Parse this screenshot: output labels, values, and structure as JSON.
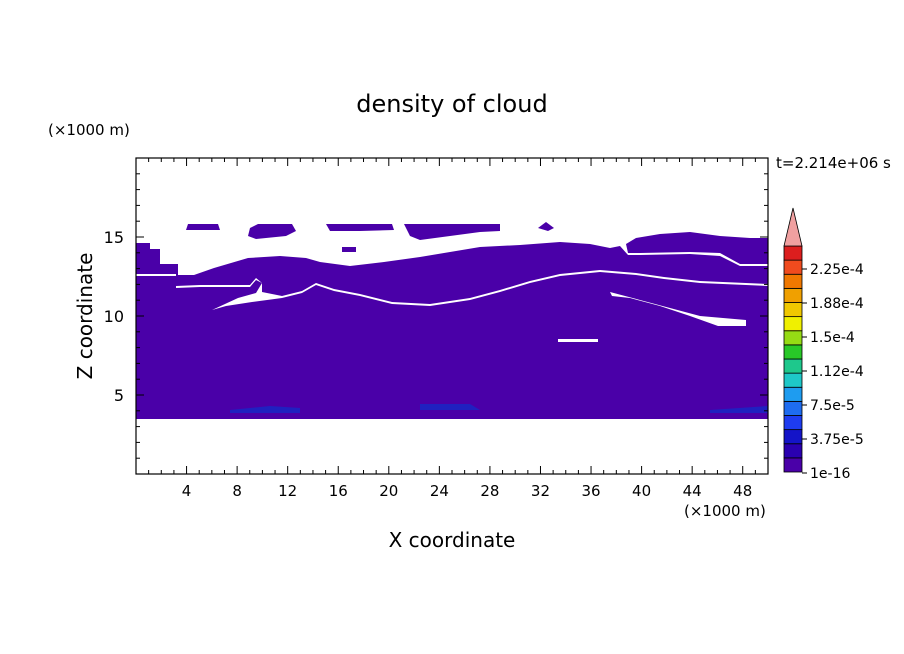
{
  "chart_data": {
    "type": "heatmap",
    "title": "density of cloud",
    "xlabel": "X coordinate",
    "ylabel": "Z coordinate",
    "x_unit": "(×1000 m)",
    "y_unit": "(×1000 m)",
    "time_label": "t=2.214e+06 s",
    "xlim": [
      0,
      50
    ],
    "ylim": [
      0,
      20
    ],
    "x_ticks": [
      4,
      8,
      12,
      16,
      20,
      24,
      28,
      32,
      36,
      40,
      44,
      48
    ],
    "y_ticks": [
      5,
      10,
      15
    ],
    "fill_color": "#4a00a8",
    "deep_color": "#2020c0",
    "colorbar": {
      "levels": [
        "2.25e-4",
        "1.88e-4",
        "1.5e-4",
        "1.12e-4",
        "7.5e-5",
        "3.75e-5",
        "1e-16"
      ],
      "colors": [
        "#4a00a8",
        "#2a00b0",
        "#1414c8",
        "#1e3cf0",
        "#1e6cf0",
        "#1e9cf0",
        "#1ec8c8",
        "#1ec88c",
        "#28c828",
        "#96dc14",
        "#f0f000",
        "#f0c800",
        "#f0a000",
        "#f07800",
        "#f04b1e",
        "#dc1e1e"
      ],
      "extension_color": "#f0a0a0"
    },
    "regions": [
      {
        "name": "main-cloud-body",
        "value": "1e-16",
        "z_bottom": 3.5,
        "z_top_approx": 12.5,
        "x_range": [
          0,
          50
        ]
      },
      {
        "name": "mid-cloud-band",
        "value": "1e-16",
        "z_range": [
          11,
          14.4
        ],
        "x_range": [
          0,
          50
        ]
      },
      {
        "name": "upper-cloud-patches",
        "value": "1e-16",
        "z_range": [
          14,
          15.7
        ],
        "x_range": [
          4,
          49
        ]
      },
      {
        "name": "near-base-denser-patches",
        "value": "3.75e-5",
        "z_range": [
          3.6,
          4.4
        ],
        "x_range": [
          6,
          50
        ]
      }
    ]
  }
}
